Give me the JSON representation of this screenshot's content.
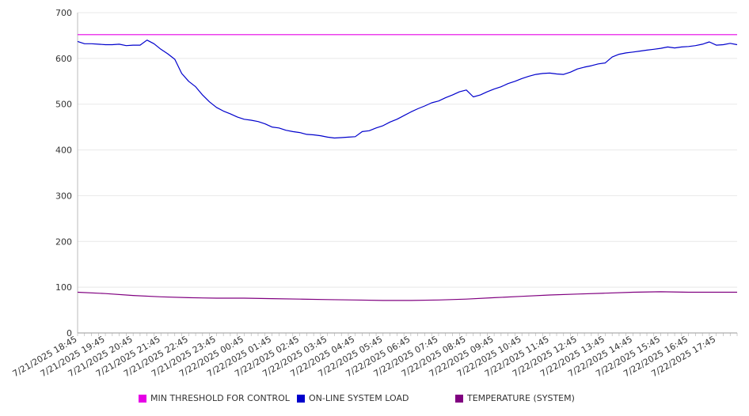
{
  "chart_data": {
    "type": "line",
    "title": "",
    "xlabel": "",
    "ylabel": "",
    "ylim": [
      0,
      700
    ],
    "yticks": [
      "0",
      "100",
      "200",
      "300",
      "400",
      "500",
      "600",
      "700"
    ],
    "grid": true,
    "legend_position": "bottom",
    "x_tick_labels": [
      "7/21/2025 18:45",
      "7/21/2025 19:45",
      "7/21/2025 20:45",
      "7/21/2025 21:45",
      "7/21/2025 22:45",
      "7/21/2025 23:45",
      "7/22/2025 00:45",
      "7/22/2025 01:45",
      "7/22/2025 02:45",
      "7/22/2025 03:45",
      "7/22/2025 04:45",
      "7/22/2025 05:45",
      "7/22/2025 06:45",
      "7/22/2025 07:45",
      "7/22/2025 08:45",
      "7/22/2025 09:45",
      "7/22/2025 10:45",
      "7/22/2025 11:45",
      "7/22/2025 12:45",
      "7/22/2025 13:45",
      "7/22/2025 14:45",
      "7/22/2025 15:45",
      "7/22/2025 16:45",
      "7/22/2025 17:45"
    ],
    "x_range": [
      "7/21/2025 18:45",
      "7/22/2025 18:30"
    ],
    "series": [
      {
        "name": "MIN THRESHOLD FOR CONTROL",
        "color": "#e600e6",
        "points": [
          [
            "7/21/2025 18:45",
            652
          ],
          [
            "7/22/2025 18:30",
            652
          ]
        ]
      },
      {
        "name": "ON-LINE SYSTEM LOAD",
        "color": "#0000cc",
        "points": [
          [
            "7/21/2025 18:45",
            637
          ],
          [
            "7/21/2025 19:00",
            632
          ],
          [
            "7/21/2025 19:15",
            632
          ],
          [
            "7/21/2025 19:30",
            631
          ],
          [
            "7/21/2025 19:45",
            630
          ],
          [
            "7/21/2025 20:00",
            630
          ],
          [
            "7/21/2025 20:15",
            631
          ],
          [
            "7/21/2025 20:30",
            628
          ],
          [
            "7/21/2025 20:45",
            629
          ],
          [
            "7/21/2025 21:00",
            629
          ],
          [
            "7/21/2025 21:15",
            640
          ],
          [
            "7/21/2025 21:30",
            632
          ],
          [
            "7/21/2025 21:45",
            620
          ],
          [
            "7/21/2025 22:00",
            610
          ],
          [
            "7/21/2025 22:15",
            598
          ],
          [
            "7/21/2025 22:30",
            567
          ],
          [
            "7/21/2025 22:45",
            550
          ],
          [
            "7/21/2025 23:00",
            538
          ],
          [
            "7/21/2025 23:15",
            520
          ],
          [
            "7/21/2025 23:30",
            505
          ],
          [
            "7/21/2025 23:45",
            493
          ],
          [
            "7/22/2025 00:00",
            485
          ],
          [
            "7/22/2025 00:15",
            479
          ],
          [
            "7/22/2025 00:30",
            472
          ],
          [
            "7/22/2025 00:45",
            467
          ],
          [
            "7/22/2025 01:00",
            465
          ],
          [
            "7/22/2025 01:15",
            462
          ],
          [
            "7/22/2025 01:30",
            457
          ],
          [
            "7/22/2025 01:45",
            450
          ],
          [
            "7/22/2025 02:00",
            448
          ],
          [
            "7/22/2025 02:15",
            443
          ],
          [
            "7/22/2025 02:30",
            440
          ],
          [
            "7/22/2025 02:45",
            438
          ],
          [
            "7/22/2025 03:00",
            434
          ],
          [
            "7/22/2025 03:15",
            433
          ],
          [
            "7/22/2025 03:30",
            431
          ],
          [
            "7/22/2025 03:45",
            428
          ],
          [
            "7/22/2025 04:00",
            426
          ],
          [
            "7/22/2025 04:15",
            427
          ],
          [
            "7/22/2025 04:30",
            428
          ],
          [
            "7/22/2025 04:45",
            429
          ],
          [
            "7/22/2025 05:00",
            440
          ],
          [
            "7/22/2025 05:15",
            442
          ],
          [
            "7/22/2025 05:30",
            448
          ],
          [
            "7/22/2025 05:45",
            453
          ],
          [
            "7/22/2025 06:00",
            461
          ],
          [
            "7/22/2025 06:15",
            467
          ],
          [
            "7/22/2025 06:30",
            475
          ],
          [
            "7/22/2025 06:45",
            483
          ],
          [
            "7/22/2025 07:00",
            490
          ],
          [
            "7/22/2025 07:15",
            496
          ],
          [
            "7/22/2025 07:30",
            503
          ],
          [
            "7/22/2025 07:45",
            507
          ],
          [
            "7/22/2025 08:00",
            514
          ],
          [
            "7/22/2025 08:15",
            520
          ],
          [
            "7/22/2025 08:30",
            527
          ],
          [
            "7/22/2025 08:45",
            531
          ],
          [
            "7/22/2025 09:00",
            516
          ],
          [
            "7/22/2025 09:15",
            520
          ],
          [
            "7/22/2025 09:30",
            527
          ],
          [
            "7/22/2025 09:45",
            533
          ],
          [
            "7/22/2025 10:00",
            538
          ],
          [
            "7/22/2025 10:15",
            545
          ],
          [
            "7/22/2025 10:30",
            550
          ],
          [
            "7/22/2025 10:45",
            556
          ],
          [
            "7/22/2025 11:00",
            561
          ],
          [
            "7/22/2025 11:15",
            565
          ],
          [
            "7/22/2025 11:30",
            567
          ],
          [
            "7/22/2025 11:45",
            568
          ],
          [
            "7/22/2025 12:00",
            566
          ],
          [
            "7/22/2025 12:15",
            565
          ],
          [
            "7/22/2025 12:30",
            570
          ],
          [
            "7/22/2025 12:45",
            577
          ],
          [
            "7/22/2025 13:00",
            581
          ],
          [
            "7/22/2025 13:15",
            584
          ],
          [
            "7/22/2025 13:30",
            588
          ],
          [
            "7/22/2025 13:45",
            590
          ],
          [
            "7/22/2025 14:00",
            603
          ],
          [
            "7/22/2025 14:15",
            609
          ],
          [
            "7/22/2025 14:30",
            612
          ],
          [
            "7/22/2025 14:45",
            614
          ],
          [
            "7/22/2025 15:00",
            616
          ],
          [
            "7/22/2025 15:15",
            618
          ],
          [
            "7/22/2025 15:30",
            620
          ],
          [
            "7/22/2025 15:45",
            622
          ],
          [
            "7/22/2025 16:00",
            625
          ],
          [
            "7/22/2025 16:15",
            623
          ],
          [
            "7/22/2025 16:30",
            625
          ],
          [
            "7/22/2025 16:45",
            626
          ],
          [
            "7/22/2025 17:00",
            628
          ],
          [
            "7/22/2025 17:15",
            631
          ],
          [
            "7/22/2025 17:30",
            636
          ],
          [
            "7/22/2025 17:45",
            629
          ],
          [
            "7/22/2025 18:00",
            630
          ],
          [
            "7/22/2025 18:15",
            633
          ],
          [
            "7/22/2025 18:30",
            630
          ]
        ]
      },
      {
        "name": "TEMPERATURE (SYSTEM)",
        "color": "#800080",
        "points": [
          [
            "7/21/2025 18:45",
            89
          ],
          [
            "7/21/2025 19:45",
            86
          ],
          [
            "7/21/2025 20:45",
            82
          ],
          [
            "7/21/2025 21:45",
            79
          ],
          [
            "7/21/2025 22:45",
            77
          ],
          [
            "7/21/2025 23:45",
            76
          ],
          [
            "7/22/2025 00:45",
            76
          ],
          [
            "7/22/2025 01:45",
            75
          ],
          [
            "7/22/2025 02:45",
            74
          ],
          [
            "7/22/2025 03:45",
            73
          ],
          [
            "7/22/2025 04:45",
            72
          ],
          [
            "7/22/2025 05:45",
            71
          ],
          [
            "7/22/2025 06:45",
            71
          ],
          [
            "7/22/2025 07:45",
            72
          ],
          [
            "7/22/2025 08:45",
            74
          ],
          [
            "7/22/2025 09:45",
            77
          ],
          [
            "7/22/2025 10:45",
            80
          ],
          [
            "7/22/2025 11:45",
            83
          ],
          [
            "7/22/2025 12:45",
            85
          ],
          [
            "7/22/2025 13:45",
            87
          ],
          [
            "7/22/2025 14:45",
            89
          ],
          [
            "7/22/2025 15:45",
            90
          ],
          [
            "7/22/2025 16:45",
            89
          ],
          [
            "7/22/2025 17:45",
            89
          ],
          [
            "7/22/2025 18:30",
            89
          ]
        ]
      }
    ]
  }
}
